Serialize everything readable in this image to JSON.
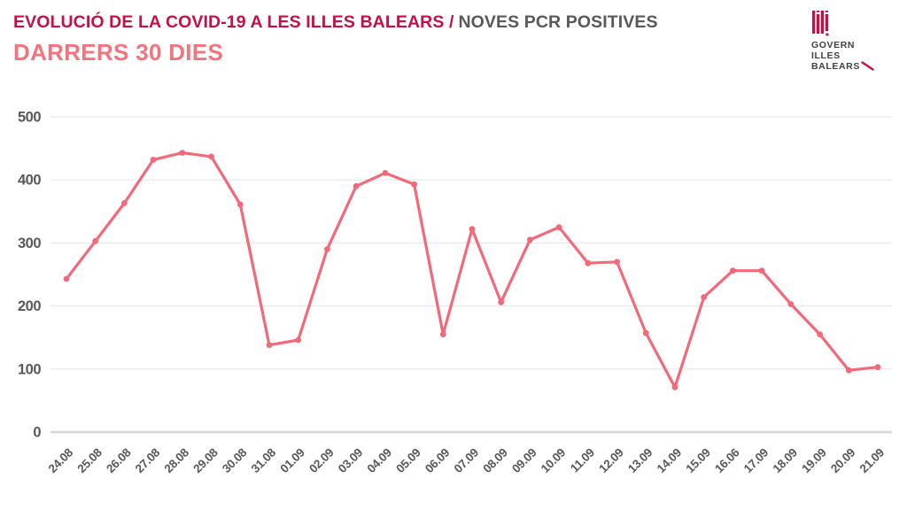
{
  "header": {
    "title_main": "EVOLUCIÓ DE LA COVID-19 A LES ILLES BALEARS /",
    "title_secondary": "NOVES PCR POSITIVES",
    "subtitle": "DARRERS 30 DIES"
  },
  "logo": {
    "icon": "balearic-flag-icon",
    "lines": [
      "GOVERN",
      "ILLES",
      "BALEARS"
    ]
  },
  "colors": {
    "title_accent": "#C31049",
    "title_gray": "#58595B",
    "subtitle_pink": "#F3737E",
    "line": "#F4697A",
    "marker": "#F4697A",
    "gridline": "#EDEDED",
    "axis_line": "#D6D6D6",
    "tick_text": "#58595B",
    "logo_text": "#414042"
  },
  "chart_data": {
    "type": "line",
    "title": "EVOLUCIÓ DE LA COVID-19 A LES ILLES BALEARS / NOVES PCR POSITIVES — DARRERS 30 DIES",
    "categories": [
      "24.08",
      "25.08",
      "26.08",
      "27.08",
      "28.08",
      "29.08",
      "30.08",
      "31.08",
      "01.09",
      "02.09",
      "03.09",
      "04.09",
      "05.09",
      "06.09",
      "07.09",
      "08.09",
      "09.09",
      "10.09",
      "11.09",
      "12.09",
      "13.09",
      "14.09",
      "15.09",
      "16.06",
      "17.09",
      "18.09",
      "19.09",
      "20.09",
      "21.09"
    ],
    "values": [
      243,
      303,
      363,
      432,
      443,
      437,
      361,
      138,
      146,
      290,
      390,
      411,
      393,
      155,
      322,
      206,
      305,
      325,
      268,
      270,
      157,
      71,
      214,
      256,
      256,
      203,
      155,
      98,
      103
    ],
    "xlabel": "",
    "ylabel": "",
    "ylim": [
      0,
      500
    ],
    "yticks": [
      0,
      100,
      200,
      300,
      400,
      500
    ],
    "grid": true,
    "legend": false,
    "marker": "circle"
  }
}
